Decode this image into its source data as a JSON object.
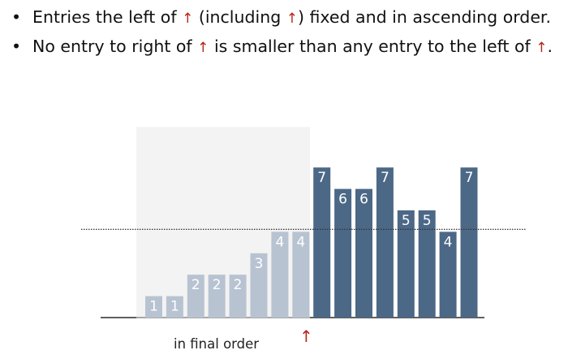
{
  "bullets": [
    {
      "text_a": "Entries the left of ",
      "arrow_a": "↑",
      "text_b": " (including ",
      "arrow_b": "↑",
      "text_c": ") fixed and in ascending order."
    },
    {
      "text_a": "No entry to right of ",
      "arrow_a": "↑",
      "text_b": " is smaller than any entry to the left of ",
      "arrow_b": "↑",
      "text_c": "."
    }
  ],
  "caption": "in final order",
  "pointer": "↑",
  "colors": {
    "sorted_bar": "#b8c3d2",
    "unsorted_bar": "#4c6887",
    "highlight_region": "#f3f3f3",
    "arrow": "#b5261b"
  },
  "chart_data": {
    "type": "bar",
    "values": [
      1,
      1,
      2,
      2,
      2,
      3,
      4,
      4,
      7,
      6,
      6,
      7,
      5,
      5,
      4,
      7
    ],
    "pointer_index": 7,
    "sorted_count": 8,
    "reference_level": 4
  }
}
